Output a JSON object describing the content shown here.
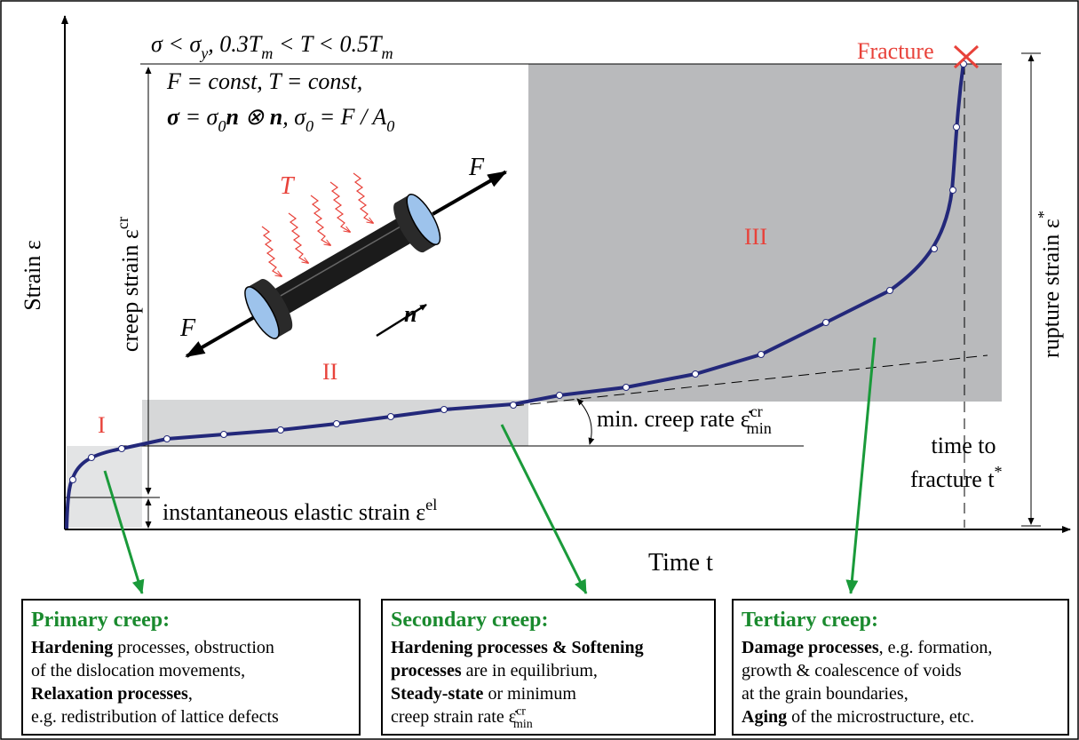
{
  "labels": {
    "conditions": [
      {
        "text": "σ < σ"
      },
      {
        "text": "y",
        "style": "sub"
      },
      {
        "text": ",   0.3T"
      },
      {
        "text": "m",
        "style": "sub"
      },
      {
        "text": " < T < 0.5T"
      },
      {
        "text": "m",
        "style": "sub"
      }
    ],
    "load1": [
      {
        "text": "F = const,    T = const,"
      }
    ],
    "load2": [
      {
        "text": "σ",
        "style": "bold"
      },
      {
        "text": " = σ"
      },
      {
        "text": "0",
        "style": "sub"
      },
      {
        "text": "n",
        "style": "bold"
      },
      {
        "text": " ⊗ "
      },
      {
        "text": "n",
        "style": "bold"
      },
      {
        "text": ",    σ"
      },
      {
        "text": "0",
        "style": "sub"
      },
      {
        "text": " = F / A"
      },
      {
        "text": "0",
        "style": "sub"
      }
    ],
    "temperature": [
      {
        "text": "T"
      }
    ],
    "force_top": [
      {
        "text": "F"
      }
    ],
    "force_left": [
      {
        "text": "F"
      }
    ],
    "normal": [
      {
        "text": "n",
        "style": "bold"
      }
    ],
    "stage1": [
      {
        "text": "I"
      }
    ],
    "stage2": [
      {
        "text": "II"
      }
    ],
    "stage3": [
      {
        "text": "III"
      }
    ],
    "creep_strain": [
      {
        "text": "creep strain ε"
      },
      {
        "text": "cr",
        "style": "sup"
      }
    ],
    "strain_axis": [
      {
        "text": "Strain ε"
      }
    ],
    "rupture_strain": [
      {
        "text": "rupture strain ε"
      },
      {
        "text": "*",
        "style": "sup"
      }
    ],
    "fracture": [
      {
        "text": "Fracture"
      }
    ],
    "min_rate": [
      {
        "text": "min. creep rate ε̇"
      },
      {
        "text": "cr",
        "style": "sup"
      },
      {
        "text": "min",
        "style": "sub"
      }
    ],
    "elastic": [
      {
        "text": "instantaneous elastic strain ε"
      },
      {
        "text": "el",
        "style": "sup"
      }
    ],
    "time_to": [
      {
        "text": "time to"
      }
    ],
    "fracture_time": [
      {
        "text": "fracture t"
      },
      {
        "text": "*",
        "style": "sup"
      }
    ],
    "time_axis": [
      {
        "text": "Time t"
      }
    ]
  },
  "boxes": [
    {
      "title": "Primary creep:",
      "lines": [
        [
          {
            "text": "Hardening",
            "style": "bold"
          },
          {
            "text": " processes, obstruction"
          }
        ],
        [
          {
            "text": "of the dislocation movements,"
          }
        ],
        [
          {
            "text": "Relaxation processes",
            "style": "bold"
          },
          {
            "text": ","
          }
        ],
        [
          {
            "text": "e.g. redistribution of lattice defects"
          }
        ]
      ]
    },
    {
      "title": "Secondary creep:",
      "lines": [
        [
          {
            "text": "Hardening processes & Softening",
            "style": "bold"
          }
        ],
        [
          {
            "text": "processes",
            "style": "bold"
          },
          {
            "text": " are in equilibrium,"
          }
        ],
        [
          {
            "text": "Steady-state",
            "style": "bold"
          },
          {
            "text": " or minimum"
          }
        ],
        [
          {
            "text": "creep strain rate ε̇"
          },
          {
            "text": "cr",
            "style": "sup"
          },
          {
            "text": "min",
            "style": "sub"
          }
        ]
      ]
    },
    {
      "title": "Tertiary creep:",
      "lines": [
        [
          {
            "text": "Damage processes",
            "style": "bold"
          },
          {
            "text": ", e.g. formation,"
          }
        ],
        [
          {
            "text": "growth & coalescence of voids"
          }
        ],
        [
          {
            "text": "at the grain boundaries,"
          }
        ],
        [
          {
            "text": "Aging",
            "style": "bold"
          },
          {
            "text": " of the microstructure, etc."
          }
        ]
      ]
    }
  ]
}
